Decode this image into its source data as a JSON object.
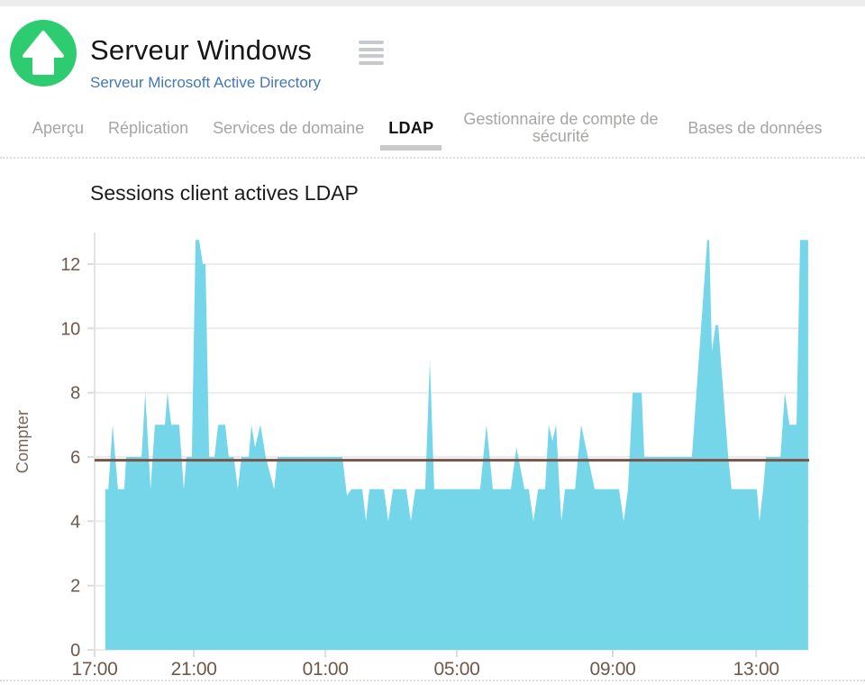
{
  "page": {
    "title": "Serveur Windows",
    "subtitle": "Serveur Microsoft Active Directory"
  },
  "tabs": [
    {
      "label": "Aperçu",
      "active": false
    },
    {
      "label": "Réplication",
      "active": false
    },
    {
      "label": "Services de domaine",
      "active": false
    },
    {
      "label": "LDAP",
      "active": true
    },
    {
      "label": "Gestionnaire de compte de sécurité",
      "active": false
    },
    {
      "label": "Bases de données",
      "active": false
    }
  ],
  "chart": {
    "title": "Sessions client actives LDAP"
  },
  "icons": {
    "app_icon": "up-arrow-icon",
    "menu_icon": "menu-icon"
  },
  "colors": {
    "accent_green": "#2ecc71",
    "link_blue": "#4377b8",
    "inactive_tab": "#a7a5a3",
    "active_tab": "#111111"
  },
  "chart_data": {
    "type": "area",
    "title": "Sessions client actives LDAP",
    "xlabel": "",
    "ylabel": "Compter",
    "x_axis_note": "time of day, hours measured from 17:00",
    "x_tick_labels": [
      "17:00",
      "21:00",
      "01:00",
      "05:00",
      "09:00",
      "13:00"
    ],
    "x_tick_t": [
      0,
      2.98,
      6.93,
      10.88,
      15.56,
      19.87
    ],
    "y_ticks": [
      0,
      2,
      4,
      6,
      8,
      10,
      12
    ],
    "ylim": [
      0,
      12.98
    ],
    "xlim_hours": [
      0,
      21.46
    ],
    "grid": true,
    "legend": "none",
    "reference_line_value": 5.9,
    "series": [
      {
        "name": "Sessions client actives LDAP",
        "points": [
          [
            0.32,
            0
          ],
          [
            0.32,
            5
          ],
          [
            0.41,
            5
          ],
          [
            0.54,
            7
          ],
          [
            0.7,
            5
          ],
          [
            0.89,
            5
          ],
          [
            0.95,
            6
          ],
          [
            1.41,
            6
          ],
          [
            1.52,
            8
          ],
          [
            1.68,
            5
          ],
          [
            1.81,
            7
          ],
          [
            2.11,
            7
          ],
          [
            2.19,
            8
          ],
          [
            2.3,
            7
          ],
          [
            2.54,
            7
          ],
          [
            2.68,
            5
          ],
          [
            2.76,
            6
          ],
          [
            2.92,
            6
          ],
          [
            3.03,
            12.75
          ],
          [
            3.14,
            12.75
          ],
          [
            3.25,
            12
          ],
          [
            3.33,
            12
          ],
          [
            3.44,
            6
          ],
          [
            3.6,
            6
          ],
          [
            3.71,
            7
          ],
          [
            3.92,
            7
          ],
          [
            4.03,
            6
          ],
          [
            4.18,
            6
          ],
          [
            4.3,
            5
          ],
          [
            4.41,
            6
          ],
          [
            4.63,
            6
          ],
          [
            4.71,
            7
          ],
          [
            4.82,
            6.3
          ],
          [
            4.98,
            7
          ],
          [
            5.14,
            6
          ],
          [
            5.39,
            5
          ],
          [
            5.49,
            6
          ],
          [
            7.44,
            6
          ],
          [
            7.58,
            4.8
          ],
          [
            7.71,
            5
          ],
          [
            8.04,
            5
          ],
          [
            8.15,
            4
          ],
          [
            8.25,
            5
          ],
          [
            8.69,
            5
          ],
          [
            8.82,
            4
          ],
          [
            8.96,
            5
          ],
          [
            9.36,
            5
          ],
          [
            9.5,
            4
          ],
          [
            9.63,
            5
          ],
          [
            9.93,
            5
          ],
          [
            10.07,
            9
          ],
          [
            10.2,
            5
          ],
          [
            11.58,
            5
          ],
          [
            11.77,
            7
          ],
          [
            11.96,
            5
          ],
          [
            12.5,
            5
          ],
          [
            12.67,
            6.3
          ],
          [
            12.91,
            5
          ],
          [
            13.04,
            5
          ],
          [
            13.18,
            4
          ],
          [
            13.32,
            5
          ],
          [
            13.53,
            5
          ],
          [
            13.64,
            7
          ],
          [
            13.75,
            6.5
          ],
          [
            13.86,
            7
          ],
          [
            13.96,
            5
          ],
          [
            14.02,
            4
          ],
          [
            14.13,
            5
          ],
          [
            14.43,
            5
          ],
          [
            14.61,
            7
          ],
          [
            15.02,
            5
          ],
          [
            15.75,
            5
          ],
          [
            15.89,
            4
          ],
          [
            16.02,
            5
          ],
          [
            16.16,
            8
          ],
          [
            16.43,
            8
          ],
          [
            16.51,
            6
          ],
          [
            17.94,
            6
          ],
          [
            18.4,
            12.75
          ],
          [
            18.46,
            12.75
          ],
          [
            18.54,
            9.3
          ],
          [
            18.65,
            10.1
          ],
          [
            18.73,
            10.1
          ],
          [
            19.03,
            6
          ],
          [
            19.13,
            5
          ],
          [
            19.89,
            5
          ],
          [
            19.97,
            4
          ],
          [
            20.08,
            5
          ],
          [
            20.16,
            6
          ],
          [
            20.6,
            6
          ],
          [
            20.73,
            8
          ],
          [
            20.87,
            7
          ],
          [
            21.08,
            7
          ],
          [
            21.19,
            12.75
          ],
          [
            21.43,
            12.75
          ],
          [
            21.43,
            0
          ]
        ]
      }
    ],
    "colors": {
      "series_fill": "#74d6e8",
      "reference_line": "#795548",
      "tick_label": "#6f584a",
      "gridline": "#ececec"
    }
  }
}
